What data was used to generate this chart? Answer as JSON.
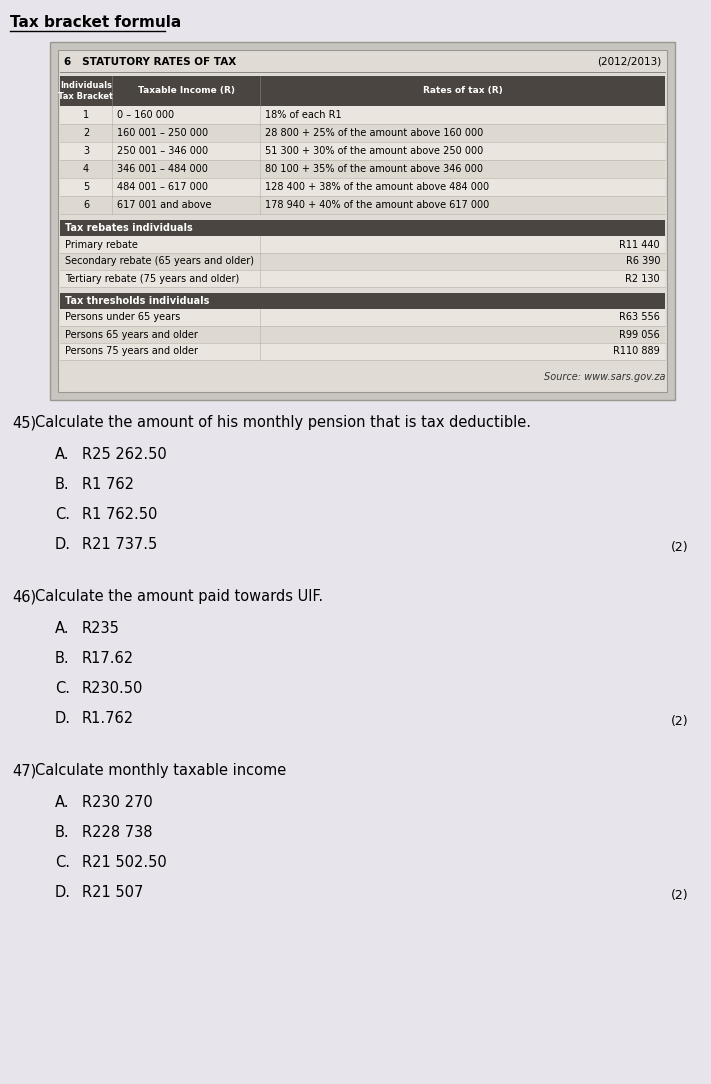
{
  "title": "Tax bracket formula",
  "table_header": "6   STATUTORY RATES OF TAX",
  "year": "(2012/2013)",
  "source": "Source: www.sars.gov.za",
  "page_bg": "#e8e4ec",
  "outer_box_bg": "#c8c4c0",
  "inner_box_bg": "#e0dbd5",
  "header_dark": "#4a4540",
  "row_light": "#eae5de",
  "row_medium": "#ddd8d0",
  "brackets": [
    [
      "1",
      "0 – 160 000",
      "18% of each R1"
    ],
    [
      "2",
      "160 001 – 250 000",
      "28 800 + 25% of the amount above 160 000"
    ],
    [
      "3",
      "250 001 – 346 000",
      "51 300 + 30% of the amount above 250 000"
    ],
    [
      "4",
      "346 001 – 484 000",
      "80 100 + 35% of the amount above 346 000"
    ],
    [
      "5",
      "484 001 – 617 000",
      "128 400 + 38% of the amount above 484 000"
    ],
    [
      "6",
      "617 001 and above",
      "178 940 + 40% of the amount above 617 000"
    ]
  ],
  "rebates_header": "Tax rebates individuals",
  "rebates": [
    [
      "Primary rebate",
      "R11 440"
    ],
    [
      "Secondary rebate (65 years and older)",
      "R6 390"
    ],
    [
      "Tertiary rebate (75 years and older)",
      "R2 130"
    ]
  ],
  "thresholds_header": "Tax thresholds individuals",
  "thresholds": [
    [
      "Persons under 65 years",
      "R63 556"
    ],
    [
      "Persons 65 years and older",
      "R99 056"
    ],
    [
      "Persons 75 years and older",
      "R110 889"
    ]
  ],
  "questions": [
    {
      "num": "45)",
      "text": "Calculate the amount of his monthly pension that is tax deductible.",
      "options": [
        [
          "A.",
          "R25 262.50"
        ],
        [
          "B.",
          "R1 762"
        ],
        [
          "C.",
          "R1 762.50"
        ],
        [
          "D.",
          "R21 737.5"
        ]
      ],
      "marks": "(2)"
    },
    {
      "num": "46)",
      "text": "Calculate the amount paid towards UIF.",
      "options": [
        [
          "A.",
          "R235"
        ],
        [
          "B.",
          "R17.62"
        ],
        [
          "C.",
          "R230.50"
        ],
        [
          "D.",
          "R1.762"
        ]
      ],
      "marks": "(2)"
    },
    {
      "num": "47)",
      "text": "Calculate monthly taxable income",
      "options": [
        [
          "A.",
          "R230 270"
        ],
        [
          "B.",
          "R228 738"
        ],
        [
          "C.",
          "R21 502.50"
        ],
        [
          "D.",
          "R21 507"
        ]
      ],
      "marks": "(2)"
    }
  ]
}
